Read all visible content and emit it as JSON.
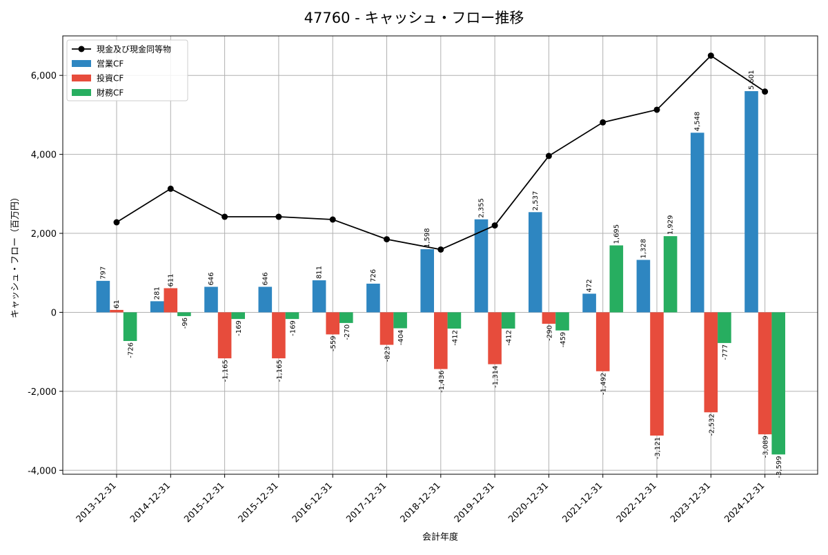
{
  "chart_data": {
    "type": "bar",
    "title": "47760 - キャッシュ・フロー推移",
    "xlabel": "会計年度",
    "ylabel": "キャッシュ・フロー（百万円）",
    "ylim": [
      -4100,
      7000
    ],
    "yticks": [
      -4000,
      -2000,
      0,
      2000,
      4000,
      6000
    ],
    "ytick_labels": [
      "-4,000",
      "-2,000",
      "0",
      "2,000",
      "4,000",
      "6,000"
    ],
    "grid": true,
    "legend_position": "top-left",
    "categories": [
      "2013-12-31",
      "2014-12-31",
      "2015-12-31",
      "2015-12-31",
      "2016-12-31",
      "2017-12-31",
      "2018-12-31",
      "2019-12-31",
      "2020-12-31",
      "2021-12-31",
      "2022-12-31",
      "2023-12-31",
      "2024-12-31"
    ],
    "series": [
      {
        "name": "営業CF",
        "kind": "bar",
        "color": "#2e86c1",
        "values": [
          797,
          281,
          646,
          646,
          811,
          726,
          1598,
          2355,
          2537,
          472,
          1328,
          4548,
          5601
        ],
        "labels": [
          "797",
          "281",
          "646",
          "646",
          "811",
          "726",
          "1,598",
          "2,355",
          "2,537",
          "472",
          "1,328",
          "4,548",
          "5,601"
        ]
      },
      {
        "name": "投資CF",
        "kind": "bar",
        "color": "#e74c3c",
        "values": [
          61,
          611,
          -1165,
          -1165,
          -559,
          -823,
          -1436,
          -1314,
          -290,
          -1492,
          -3121,
          -2532,
          -3089
        ],
        "labels": [
          "61",
          "611",
          "-1,165",
          "-1,165",
          "-559",
          "-823",
          "-1,436",
          "-1,314",
          "-290",
          "-1,492",
          "-3,121",
          "-2,532",
          "-3,089"
        ]
      },
      {
        "name": "財務CF",
        "kind": "bar",
        "color": "#27ae60",
        "values": [
          -726,
          -96,
          -169,
          -169,
          -270,
          -404,
          -412,
          -412,
          -459,
          1695,
          1929,
          -777,
          -3599
        ],
        "labels": [
          "-726",
          "-96",
          "-169",
          "-169",
          "-270",
          "-404",
          "-412",
          "-412",
          "-459",
          "1,695",
          "1,929",
          "-777",
          "-3,599"
        ]
      },
      {
        "name": "現金及び現金同等物",
        "kind": "line",
        "color": "#000000",
        "values": [
          2280,
          3130,
          2420,
          2420,
          2350,
          1850,
          1590,
          2200,
          3960,
          4810,
          5130,
          6500,
          5590
        ]
      }
    ]
  }
}
